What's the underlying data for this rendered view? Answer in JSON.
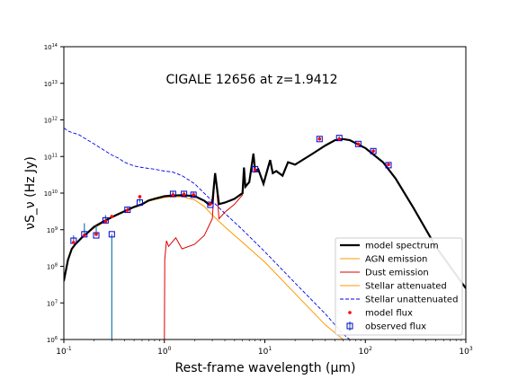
{
  "chart_data": {
    "type": "line",
    "title": "CIGALE 12656 at z=1.9412",
    "xlabel": "Rest-frame wavelength (μm)",
    "ylabel": "νS_ν (Hz Jy)",
    "xscale": "log",
    "yscale": "log",
    "xlim": [
      0.1,
      1000
    ],
    "ylim": [
      1000000,
      100000000000000
    ],
    "grid": false,
    "legend_position": "bottom-right",
    "x_ticks": [
      {
        "value": 0.1,
        "base": "10",
        "exp": "-1"
      },
      {
        "value": 1,
        "base": "10",
        "exp": "0"
      },
      {
        "value": 10,
        "base": "10",
        "exp": "1"
      },
      {
        "value": 100,
        "base": "10",
        "exp": "2"
      },
      {
        "value": 1000,
        "base": "10",
        "exp": "3"
      }
    ],
    "y_ticks": [
      {
        "value": 1000000,
        "base": "10",
        "exp": "6"
      },
      {
        "value": 10000000,
        "base": "10",
        "exp": "7"
      },
      {
        "value": 100000000,
        "base": "10",
        "exp": "8"
      },
      {
        "value": 1000000000,
        "base": "10",
        "exp": "9"
      },
      {
        "value": 10000000000,
        "base": "10",
        "exp": "10"
      },
      {
        "value": 100000000000,
        "base": "10",
        "exp": "11"
      },
      {
        "value": 1000000000000,
        "base": "10",
        "exp": "12"
      },
      {
        "value": 10000000000000,
        "base": "10",
        "exp": "13"
      },
      {
        "value": 100000000000000,
        "base": "10",
        "exp": "14"
      }
    ],
    "series": [
      {
        "name": "model spectrum",
        "color": "#000000",
        "style": "solid",
        "points": [
          [
            0.1,
            40000000.0
          ],
          [
            0.11,
            150000000.0
          ],
          [
            0.12,
            300000000.0
          ],
          [
            0.13,
            400000000.0
          ],
          [
            0.15,
            600000000.0
          ],
          [
            0.17,
            800000000.0
          ],
          [
            0.2,
            1200000000.0
          ],
          [
            0.25,
            1700000000.0
          ],
          [
            0.3,
            2200000000.0
          ],
          [
            0.4,
            3200000000.0
          ],
          [
            0.5,
            4200000000.0
          ],
          [
            0.6,
            5000000000.0
          ],
          [
            0.7,
            6300000000.0
          ],
          [
            0.8,
            7000000000.0
          ],
          [
            1.0,
            8200000000.0
          ],
          [
            1.2,
            8600000000.0
          ],
          [
            1.5,
            8800000000.0
          ],
          [
            2.0,
            8300000000.0
          ],
          [
            2.5,
            6200000000.0
          ],
          [
            2.8,
            4800000000.0
          ],
          [
            3.0,
            5500000000.0
          ],
          [
            3.2,
            35000000000.0
          ],
          [
            3.35,
            13000000000.0
          ],
          [
            3.5,
            5000000000.0
          ],
          [
            4.0,
            5500000000.0
          ],
          [
            5.0,
            7000000000.0
          ],
          [
            6.0,
            10000000000.0
          ],
          [
            6.2,
            50000000000.0
          ],
          [
            6.4,
            15000000000.0
          ],
          [
            7.0,
            20000000000.0
          ],
          [
            7.7,
            120000000000.0
          ],
          [
            8.0,
            40000000000.0
          ],
          [
            8.6,
            45000000000.0
          ],
          [
            9.7,
            18000000000.0
          ],
          [
            11.3,
            80000000000.0
          ],
          [
            12.0,
            35000000000.0
          ],
          [
            13.0,
            40000000000.0
          ],
          [
            15.0,
            30000000000.0
          ],
          [
            17.0,
            70000000000.0
          ],
          [
            20.0,
            60000000000.0
          ],
          [
            30.0,
            120000000000.0
          ],
          [
            40.0,
            200000000000.0
          ],
          [
            50.0,
            280000000000.0
          ],
          [
            60.0,
            300000000000.0
          ],
          [
            70.0,
            280000000000.0
          ],
          [
            100.0,
            170000000000.0
          ],
          [
            150.0,
            70000000000.0
          ],
          [
            200.0,
            25000000000.0
          ],
          [
            300.0,
            4000000000.0
          ],
          [
            500.0,
            350000000.0
          ],
          [
            1000.0,
            25000000.0
          ]
        ]
      },
      {
        "name": "AGN emission",
        "color": "#ff9900",
        "style": "solid",
        "points": []
      },
      {
        "name": "Dust emission",
        "color": "#dd0000",
        "style": "solid",
        "points": [
          [
            1.0,
            1000000.0
          ],
          [
            1.01,
            150000000.0
          ],
          [
            1.05,
            500000000.0
          ],
          [
            1.1,
            350000000.0
          ],
          [
            1.3,
            600000000.0
          ],
          [
            1.5,
            300000000.0
          ],
          [
            2.0,
            400000000.0
          ],
          [
            2.5,
            700000000.0
          ],
          [
            3.0,
            2000000000.0
          ],
          [
            3.2,
            35000000000.0
          ],
          [
            3.35,
            10000000000.0
          ],
          [
            3.5,
            2000000000.0
          ],
          [
            4.0,
            3000000000.0
          ],
          [
            5.0,
            5000000000.0
          ],
          [
            6.0,
            9000000000.0
          ],
          [
            6.2,
            50000000000.0
          ],
          [
            6.4,
            14000000000.0
          ],
          [
            7.0,
            19000000000.0
          ],
          [
            7.7,
            120000000000.0
          ],
          [
            8.0,
            40000000000.0
          ],
          [
            8.6,
            45000000000.0
          ],
          [
            9.7,
            18000000000.0
          ],
          [
            11.3,
            80000000000.0
          ],
          [
            12.0,
            35000000000.0
          ],
          [
            13.0,
            40000000000.0
          ],
          [
            15.0,
            30000000000.0
          ],
          [
            17.0,
            70000000000.0
          ],
          [
            20.0,
            60000000000.0
          ],
          [
            30.0,
            120000000000.0
          ],
          [
            40.0,
            200000000000.0
          ],
          [
            50.0,
            280000000000.0
          ],
          [
            60.0,
            300000000000.0
          ],
          [
            70.0,
            280000000000.0
          ],
          [
            100.0,
            170000000000.0
          ],
          [
            150.0,
            70000000000.0
          ],
          [
            200.0,
            25000000000.0
          ],
          [
            300.0,
            4000000000.0
          ],
          [
            500.0,
            350000000.0
          ],
          [
            1000.0,
            25000000.0
          ]
        ]
      },
      {
        "name": "Stellar attenuated",
        "color": "#ff9900",
        "style": "solid",
        "points": [
          [
            0.1,
            35000000.0
          ],
          [
            0.11,
            140000000.0
          ],
          [
            0.12,
            280000000.0
          ],
          [
            0.13,
            380000000.0
          ],
          [
            0.15,
            580000000.0
          ],
          [
            0.17,
            780000000.0
          ],
          [
            0.2,
            1100000000.0
          ],
          [
            0.25,
            1600000000.0
          ],
          [
            0.3,
            2100000000.0
          ],
          [
            0.4,
            3100000000.0
          ],
          [
            0.5,
            4000000000.0
          ],
          [
            0.6,
            4700000000.0
          ],
          [
            0.7,
            6000000000.0
          ],
          [
            0.8,
            6600000000.0
          ],
          [
            1.0,
            7600000000.0
          ],
          [
            1.5,
            8000000000.0
          ],
          [
            2.0,
            6500000000.0
          ],
          [
            2.5,
            4300000000.0
          ],
          [
            3.0,
            2500000000.0
          ],
          [
            4.0,
            1200000000.0
          ],
          [
            6.0,
            450000000.0
          ],
          [
            10.0,
            130000000.0
          ],
          [
            20.0,
            18000000.0
          ],
          [
            40.0,
            2500000.0
          ],
          [
            60.0,
            1000000.0
          ]
        ]
      },
      {
        "name": "Stellar unattenuated",
        "color": "#0000ee",
        "style": "dashed",
        "points": [
          [
            0.1,
            600000000000.0
          ],
          [
            0.11,
            500000000000.0
          ],
          [
            0.12,
            450000000000.0
          ],
          [
            0.14,
            400000000000.0
          ],
          [
            0.16,
            320000000000.0
          ],
          [
            0.2,
            220000000000.0
          ],
          [
            0.25,
            150000000000.0
          ],
          [
            0.3,
            110000000000.0
          ],
          [
            0.35,
            90000000000.0
          ],
          [
            0.4,
            70000000000.0
          ],
          [
            0.5,
            55000000000.0
          ],
          [
            0.6,
            50000000000.0
          ],
          [
            0.8,
            45000000000.0
          ],
          [
            1.0,
            40000000000.0
          ],
          [
            1.2,
            38000000000.0
          ],
          [
            1.5,
            30000000000.0
          ],
          [
            2.0,
            18000000000.0
          ],
          [
            3.0,
            6000000000.0
          ],
          [
            4.0,
            2800000000.0
          ],
          [
            6.0,
            1000000000.0
          ],
          [
            10.0,
            250000000.0
          ],
          [
            20.0,
            35000000.0
          ],
          [
            40.0,
            5000000.0
          ],
          [
            60.0,
            1400000.0
          ],
          [
            70.0,
            1000000.0
          ]
        ]
      }
    ],
    "model_flux": {
      "name": "model flux",
      "color": "#ff0000",
      "points": [
        [
          0.125,
          450000000.0
        ],
        [
          0.16,
          700000000.0
        ],
        [
          0.21,
          750000000.0
        ],
        [
          0.26,
          1700000000.0
        ],
        [
          0.3,
          2300000000.0
        ],
        [
          0.43,
          3400000000.0
        ],
        [
          0.57,
          8000000000.0
        ],
        [
          1.22,
          9000000000.0
        ],
        [
          1.57,
          9200000000.0
        ],
        [
          1.95,
          9000000000.0
        ],
        [
          2.87,
          5000000000.0
        ],
        [
          8.0,
          43000000000.0
        ],
        [
          35.0,
          300000000000.0
        ],
        [
          55.0,
          300000000000.0
        ],
        [
          85.0,
          220000000000.0
        ],
        [
          120.0,
          140000000000.0
        ],
        [
          170.0,
          60000000000.0
        ]
      ]
    },
    "observed_flux": {
      "name": "observed flux",
      "color": "#0000cc",
      "errorbar_color": "#1f77b4",
      "points": [
        [
          0.125,
          500000000.0,
          700000000.0
        ],
        [
          0.16,
          750000000.0,
          1500000000.0
        ],
        [
          0.21,
          700000000.0,
          1300000000.0
        ],
        [
          0.26,
          1800000000.0,
          2500000000.0
        ],
        [
          0.3,
          750000000.0,
          1000000.0
        ],
        [
          0.43,
          3500000000.0,
          4000000000.0
        ],
        [
          0.57,
          5500000000.0,
          7000000000.0
        ],
        [
          1.22,
          9500000000.0,
          11000000000.0
        ],
        [
          1.57,
          9500000000.0,
          11000000000.0
        ],
        [
          1.95,
          9000000000.0,
          10500000000.0
        ],
        [
          2.87,
          4800000000.0,
          5500000000.0
        ],
        [
          8.0,
          45000000000.0,
          50000000000.0
        ],
        [
          35.0,
          300000000000.0,
          350000000000.0
        ],
        [
          55.0,
          320000000000.0,
          360000000000.0
        ],
        [
          85.0,
          220000000000.0,
          240000000000.0
        ],
        [
          120.0,
          140000000000.0,
          160000000000.0
        ],
        [
          170.0,
          58000000000.0,
          65000000000.0
        ]
      ]
    }
  }
}
